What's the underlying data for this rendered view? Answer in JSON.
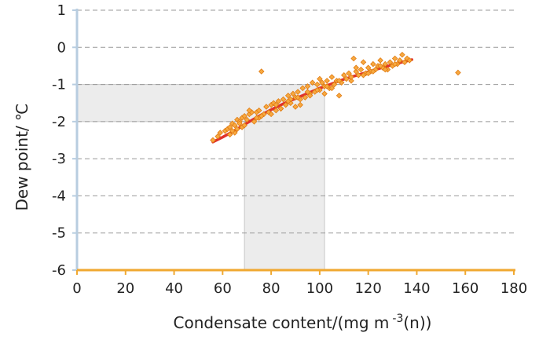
{
  "chart_data": {
    "type": "scatter",
    "title": "",
    "xlabel": "Condensate content/(mg m",
    "xlabel_superscript": "-3",
    "xlabel_suffix": "(n))",
    "ylabel": "Dew point/ ℃",
    "xlim": [
      0,
      180
    ],
    "ylim": [
      -6,
      1
    ],
    "x_ticks": [
      0,
      20,
      40,
      60,
      80,
      100,
      120,
      140,
      160,
      180
    ],
    "x_tick_labels": [
      "0",
      "20",
      "40",
      "60",
      "80",
      "100",
      "120",
      "140",
      "160",
      "180"
    ],
    "y_ticks": [
      1,
      0,
      -1,
      -2,
      -3,
      -4,
      -5,
      -6
    ],
    "y_tick_labels": [
      "1",
      "0",
      "-1",
      "-2",
      "-3",
      "-4",
      "-5",
      "-6"
    ],
    "grid": "horizontal dashed",
    "legend": "none",
    "colors": {
      "points_fill": "#f7a940",
      "points_stroke": "#e07a10",
      "fit_line": "#e0322b",
      "shading": "#ececec",
      "y_axis": "#b8cde0",
      "x_axis": "#f0a830",
      "grid": "#999999"
    },
    "shaded_regions": [
      {
        "x": [
          0,
          102
        ],
        "y": [
          -2,
          -1
        ]
      },
      {
        "x": [
          69,
          102
        ],
        "y": [
          -6,
          -2
        ]
      }
    ],
    "series": [
      {
        "type": "scatter",
        "x": [
          56,
          58,
          59,
          61,
          62,
          63,
          63,
          64,
          65,
          65,
          66,
          66,
          67,
          68,
          68,
          69,
          70,
          71,
          72,
          73,
          74,
          75,
          75,
          76,
          78,
          79,
          80,
          80,
          81,
          82,
          83,
          84,
          85,
          86,
          87,
          88,
          89,
          90,
          90,
          91,
          92,
          93,
          94,
          95,
          96,
          97,
          98,
          99,
          100,
          100,
          101,
          102,
          103,
          104,
          105,
          106,
          107,
          108,
          110,
          111,
          112,
          113,
          114,
          115,
          116,
          117,
          118,
          119,
          120,
          121,
          122,
          123,
          124,
          125,
          126,
          127,
          128,
          129,
          130,
          131,
          132,
          134,
          135,
          136,
          137,
          69,
          74,
          77,
          84,
          88,
          92,
          95,
          99,
          102,
          105,
          109,
          113,
          118,
          122,
          127,
          131,
          64,
          67,
          71,
          76,
          82,
          87,
          91,
          96,
          103,
          108,
          115,
          120,
          125,
          133,
          157
        ],
        "y": [
          -2.5,
          -2.4,
          -2.3,
          -2.25,
          -2.2,
          -2.35,
          -2.15,
          -2.05,
          -2.3,
          -2.1,
          -1.95,
          -2.2,
          -2.0,
          -1.9,
          -2.15,
          -1.85,
          -1.95,
          -1.8,
          -1.75,
          -2.0,
          -1.75,
          -1.7,
          -1.9,
          -0.65,
          -1.6,
          -1.75,
          -1.55,
          -1.8,
          -1.5,
          -1.7,
          -1.45,
          -1.65,
          -1.4,
          -1.55,
          -1.3,
          -1.5,
          -1.25,
          -1.6,
          -1.35,
          -1.2,
          -1.4,
          -1.1,
          -1.35,
          -1.05,
          -1.25,
          -0.95,
          -1.2,
          -1.0,
          -0.85,
          -1.15,
          -0.95,
          -1.05,
          -0.9,
          -1.1,
          -0.8,
          -1.0,
          -0.9,
          -1.3,
          -0.75,
          -0.85,
          -0.7,
          -0.9,
          -0.3,
          -0.65,
          -0.75,
          -0.6,
          -0.4,
          -0.7,
          -0.55,
          -0.65,
          -0.45,
          -0.6,
          -0.5,
          -0.35,
          -0.55,
          -0.45,
          -0.6,
          -0.4,
          -0.5,
          -0.3,
          -0.45,
          -0.2,
          -0.4,
          -0.3,
          -0.35,
          -2.1,
          -1.9,
          -1.8,
          -1.65,
          -1.4,
          -1.55,
          -1.2,
          -1.15,
          -1.25,
          -1.1,
          -0.95,
          -0.8,
          -0.75,
          -0.65,
          -0.6,
          -0.45,
          -2.25,
          -2.05,
          -1.7,
          -1.85,
          -1.55,
          -1.45,
          -1.35,
          -1.3,
          -1.05,
          -0.9,
          -0.55,
          -0.7,
          -0.5,
          -0.35,
          -0.68
        ]
      },
      {
        "type": "line",
        "x": [
          56,
          60,
          65,
          70,
          75,
          80,
          85,
          90,
          95,
          100,
          105,
          110,
          115,
          120,
          125,
          130,
          135,
          138
        ],
        "y": [
          -2.55,
          -2.42,
          -2.24,
          -2.04,
          -1.85,
          -1.68,
          -1.52,
          -1.38,
          -1.24,
          -1.1,
          -0.98,
          -0.86,
          -0.76,
          -0.66,
          -0.56,
          -0.47,
          -0.38,
          -0.33
        ]
      }
    ]
  }
}
